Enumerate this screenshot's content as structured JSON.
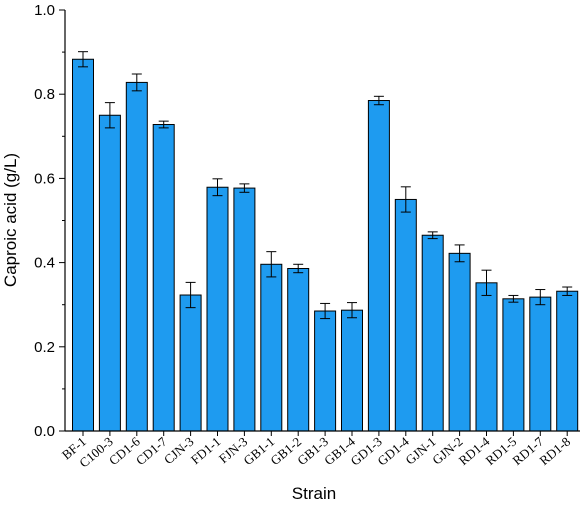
{
  "chart_data": {
    "type": "bar",
    "xlabel": "Strain",
    "ylabel": "Caproic acid (g/L)",
    "ylim": [
      0,
      1.0
    ],
    "yticks": [
      "0.0",
      "0.2",
      "0.4",
      "0.6",
      "0.8",
      "1.0"
    ],
    "categories": [
      "BF-1",
      "C100-3",
      "CD1-6",
      "CD1-7",
      "CJN-3",
      "FD1-1",
      "FJN-3",
      "GB1-1",
      "GB1-2",
      "GB1-3",
      "GB1-4",
      "GD1-3",
      "GD1-4",
      "GJN-1",
      "GJN-2",
      "RD1-4",
      "RD1-5",
      "RD1-7",
      "RD1-8"
    ],
    "values": [
      0.883,
      0.75,
      0.828,
      0.728,
      0.323,
      0.579,
      0.577,
      0.396,
      0.386,
      0.285,
      0.287,
      0.785,
      0.55,
      0.465,
      0.422,
      0.352,
      0.314,
      0.318,
      0.332
    ],
    "errors": [
      0.018,
      0.03,
      0.02,
      0.008,
      0.03,
      0.02,
      0.01,
      0.03,
      0.01,
      0.018,
      0.018,
      0.01,
      0.03,
      0.008,
      0.02,
      0.03,
      0.008,
      0.018,
      0.01
    ],
    "bar_color": "#1E9BF0",
    "bar_edge_color": "#000000",
    "grid": false,
    "legend": "none"
  }
}
